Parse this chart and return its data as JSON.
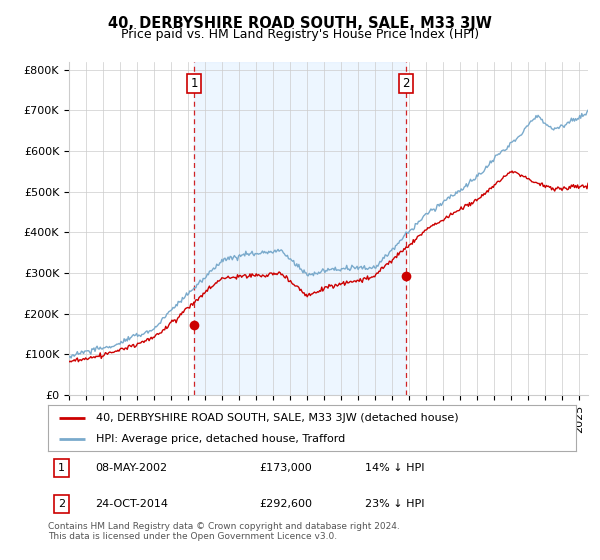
{
  "title": "40, DERBYSHIRE ROAD SOUTH, SALE, M33 3JW",
  "subtitle": "Price paid vs. HM Land Registry's House Price Index (HPI)",
  "ylabel_ticks": [
    "£0",
    "£100K",
    "£200K",
    "£300K",
    "£400K",
    "£500K",
    "£600K",
    "£700K",
    "£800K"
  ],
  "ytick_values": [
    0,
    100000,
    200000,
    300000,
    400000,
    500000,
    600000,
    700000,
    800000
  ],
  "ylim": [
    0,
    820000
  ],
  "xlim_start": 1995.0,
  "xlim_end": 2025.5,
  "transaction1": {
    "date_num": 2002.35,
    "price": 173000,
    "label": "1"
  },
  "transaction2": {
    "date_num": 2014.81,
    "price": 292600,
    "label": "2"
  },
  "legend_line1": "40, DERBYSHIRE ROAD SOUTH, SALE, M33 3JW (detached house)",
  "legend_line2": "HPI: Average price, detached house, Trafford",
  "table_rows": [
    {
      "num": "1",
      "date": "08-MAY-2002",
      "price": "£173,000",
      "pct": "14% ↓ HPI"
    },
    {
      "num": "2",
      "date": "24-OCT-2014",
      "price": "£292,600",
      "pct": "23% ↓ HPI"
    }
  ],
  "footnote": "Contains HM Land Registry data © Crown copyright and database right 2024.\nThis data is licensed under the Open Government Licence v3.0.",
  "line_color_red": "#cc0000",
  "line_color_blue": "#7aaacc",
  "fill_color_blue": "#ddeeff",
  "vline_color": "#cc0000",
  "grid_color": "#cccccc",
  "background_color": "#ffffff",
  "plot_bg_color": "#ffffff",
  "title_fontsize": 10.5,
  "subtitle_fontsize": 9,
  "tick_fontsize": 8,
  "legend_fontsize": 8,
  "table_fontsize": 8,
  "footnote_fontsize": 6.5
}
